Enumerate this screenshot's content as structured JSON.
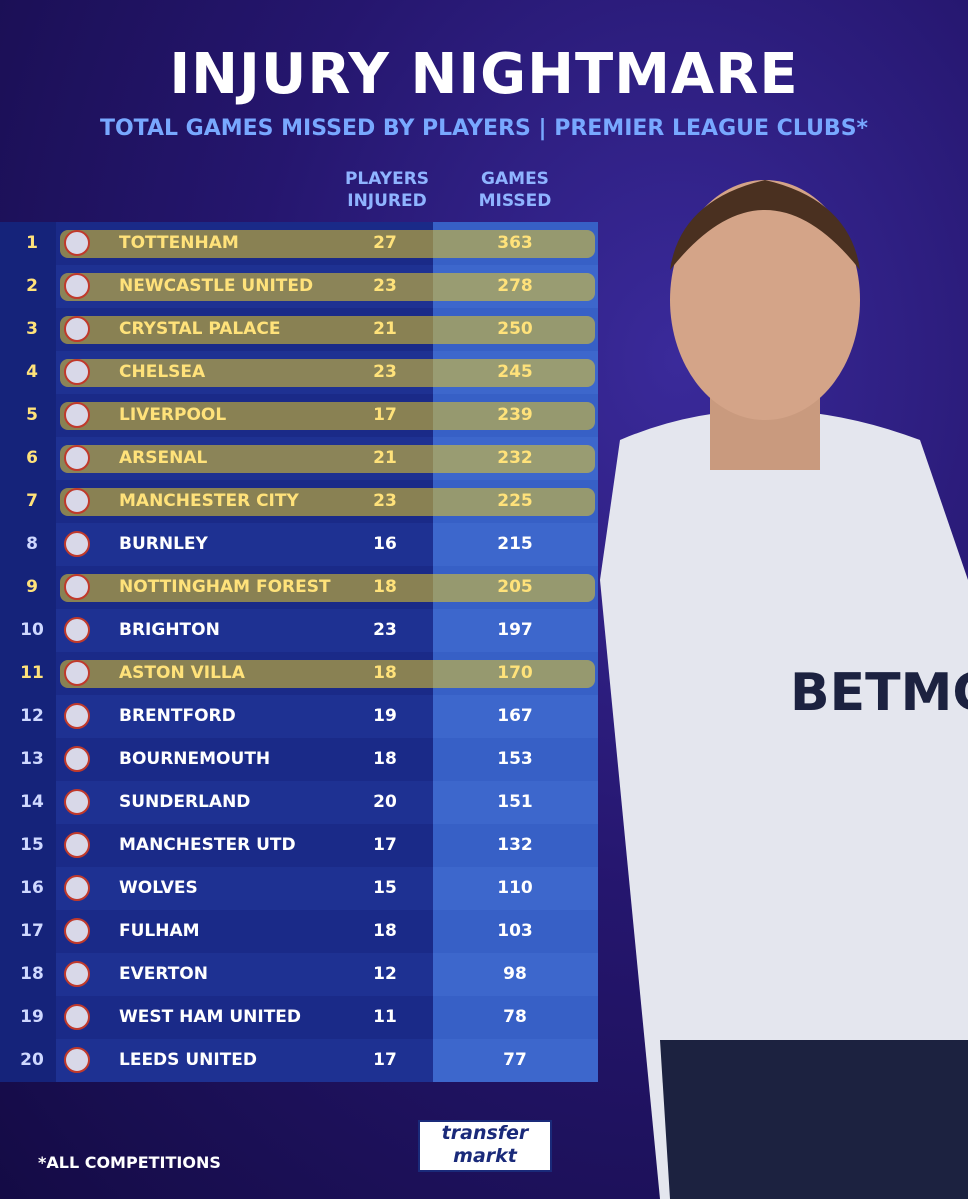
{
  "header": {
    "title": "INJURY NIGHTMARE",
    "subtitle": "TOTAL GAMES MISSED BY PLAYERS | PREMIER LEAGUE CLUBS*"
  },
  "table": {
    "columns": [
      "PLAYERS INJURED",
      "GAMES MISSED"
    ],
    "rows": [
      {
        "rank": "1",
        "club": "TOTTENHAM",
        "players_injured": "27",
        "games_missed": "363",
        "highlighted": true
      },
      {
        "rank": "2",
        "club": "NEWCASTLE UNITED",
        "players_injured": "23",
        "games_missed": "278",
        "highlighted": true
      },
      {
        "rank": "3",
        "club": "CRYSTAL PALACE",
        "players_injured": "21",
        "games_missed": "250",
        "highlighted": true
      },
      {
        "rank": "4",
        "club": "CHELSEA",
        "players_injured": "23",
        "games_missed": "245",
        "highlighted": true
      },
      {
        "rank": "5",
        "club": "LIVERPOOL",
        "players_injured": "17",
        "games_missed": "239",
        "highlighted": true
      },
      {
        "rank": "6",
        "club": "ARSENAL",
        "players_injured": "21",
        "games_missed": "232",
        "highlighted": true
      },
      {
        "rank": "7",
        "club": "MANCHESTER CITY",
        "players_injured": "23",
        "games_missed": "225",
        "highlighted": true
      },
      {
        "rank": "8",
        "club": "BURNLEY",
        "players_injured": "16",
        "games_missed": "215",
        "highlighted": false
      },
      {
        "rank": "9",
        "club": "NOTTINGHAM FOREST",
        "players_injured": "18",
        "games_missed": "205",
        "highlighted": true
      },
      {
        "rank": "10",
        "club": "BRIGHTON",
        "players_injured": "23",
        "games_missed": "197",
        "highlighted": false
      },
      {
        "rank": "11",
        "club": "ASTON VILLA",
        "players_injured": "18",
        "games_missed": "170",
        "highlighted": true
      },
      {
        "rank": "12",
        "club": "BRENTFORD",
        "players_injured": "19",
        "games_missed": "167",
        "highlighted": false
      },
      {
        "rank": "13",
        "club": "BOURNEMOUTH",
        "players_injured": "18",
        "games_missed": "153",
        "highlighted": false
      },
      {
        "rank": "14",
        "club": "SUNDERLAND",
        "players_injured": "20",
        "games_missed": "151",
        "highlighted": false
      },
      {
        "rank": "15",
        "club": "MANCHESTER UTD",
        "players_injured": "17",
        "games_missed": "132",
        "highlighted": false
      },
      {
        "rank": "16",
        "club": "WOLVES",
        "players_injured": "15",
        "games_missed": "110",
        "highlighted": false
      },
      {
        "rank": "17",
        "club": "FULHAM",
        "players_injured": "18",
        "games_missed": "103",
        "highlighted": false
      },
      {
        "rank": "18",
        "club": "EVERTON",
        "players_injured": "12",
        "games_missed": "98",
        "highlighted": false
      },
      {
        "rank": "19",
        "club": "WEST HAM UNITED",
        "players_injured": "11",
        "games_missed": "78",
        "highlighted": false
      },
      {
        "rank": "20",
        "club": "LEEDS UNITED",
        "players_injured": "17",
        "games_missed": "77",
        "highlighted": false
      }
    ]
  },
  "footer": {
    "note": "*ALL COMPETITIONS",
    "logo_top": "transfer",
    "logo_bottom": "markt"
  }
}
